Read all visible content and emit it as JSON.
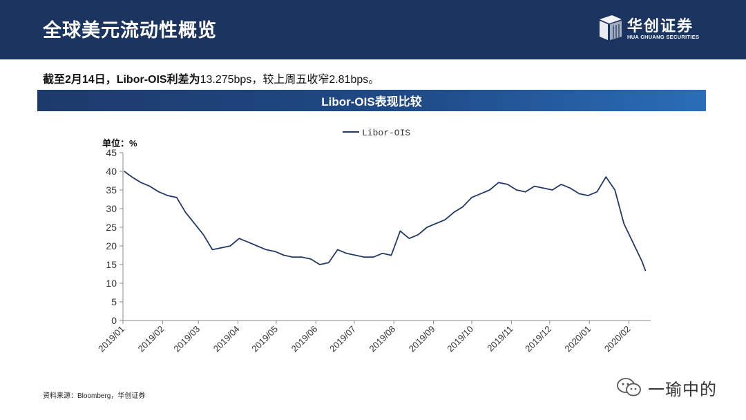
{
  "header": {
    "title": "全球美元流动性概览",
    "logo_cn": "华创证券",
    "logo_en": "HUA CHUANG SECURITIES"
  },
  "summary": {
    "bold_part": "截至2月14日，Libor-OIS利差为",
    "normal_part": "13.275bps，较上周五收窄2.81bps。"
  },
  "banner": {
    "title": "Libor-OIS表现比较"
  },
  "source": "资料来源：Bloomberg，华创证券",
  "watermark": {
    "text": "一瑜中的",
    "icon": "wechat-icon"
  },
  "colors": {
    "header_bg": "#1c3560",
    "line": "#1f3864",
    "banner_accent": "#2a6db8"
  },
  "chart_data": {
    "type": "line",
    "unit_label": "单位：%",
    "legend": [
      "Libor-OIS"
    ],
    "legend_position": "top-center",
    "ylim": [
      0,
      45
    ],
    "yticks": [
      "0",
      "5",
      "10",
      "15",
      "20",
      "25",
      "30",
      "35",
      "40",
      "45"
    ],
    "xticks": [
      "2019/01",
      "2019/02",
      "2019/03",
      "2019/04",
      "2019/05",
      "2019/06",
      "2019/07",
      "2019/08",
      "2019/09",
      "2019/10",
      "2019/11",
      "2019/12",
      "2020/01",
      "2020/02"
    ],
    "grid": false,
    "series": [
      {
        "name": "Libor-OIS",
        "x": [
          "2019/01/02",
          "2019/01/08",
          "2019/01/15",
          "2019/01/22",
          "2019/01/29",
          "2019/02/05",
          "2019/02/12",
          "2019/02/19",
          "2019/02/26",
          "2019/03/05",
          "2019/03/12",
          "2019/03/19",
          "2019/03/26",
          "2019/04/02",
          "2019/04/09",
          "2019/04/16",
          "2019/04/23",
          "2019/04/30",
          "2019/05/07",
          "2019/05/14",
          "2019/05/21",
          "2019/05/28",
          "2019/06/04",
          "2019/06/11",
          "2019/06/18",
          "2019/06/25",
          "2019/07/02",
          "2019/07/09",
          "2019/07/16",
          "2019/07/23",
          "2019/07/30",
          "2019/08/06",
          "2019/08/13",
          "2019/08/20",
          "2019/08/27",
          "2019/09/03",
          "2019/09/10",
          "2019/09/17",
          "2019/09/24",
          "2019/10/01",
          "2019/10/08",
          "2019/10/15",
          "2019/10/22",
          "2019/10/29",
          "2019/11/05",
          "2019/11/12",
          "2019/11/19",
          "2019/11/26",
          "2019/12/03",
          "2019/12/10",
          "2019/12/17",
          "2019/12/24",
          "2019/12/31",
          "2020/01/07",
          "2020/01/14",
          "2020/01/21",
          "2020/01/28",
          "2020/02/04",
          "2020/02/11",
          "2020/02/14"
        ],
        "values": [
          40,
          38.5,
          37,
          36,
          34.5,
          33.5,
          33,
          29,
          26,
          23,
          19,
          19.5,
          20,
          22,
          21,
          20,
          19,
          18.5,
          17.5,
          17,
          17,
          16.5,
          15,
          15.5,
          19,
          18,
          17.5,
          17,
          17,
          18,
          17.5,
          24,
          22,
          23,
          25,
          26,
          27,
          29,
          30.5,
          33,
          34,
          35,
          37,
          36.5,
          35,
          34.5,
          36,
          35.5,
          35,
          36.5,
          35.5,
          34,
          33.5,
          34.5,
          38.5,
          35,
          26,
          21,
          16,
          13.3
        ]
      }
    ]
  }
}
